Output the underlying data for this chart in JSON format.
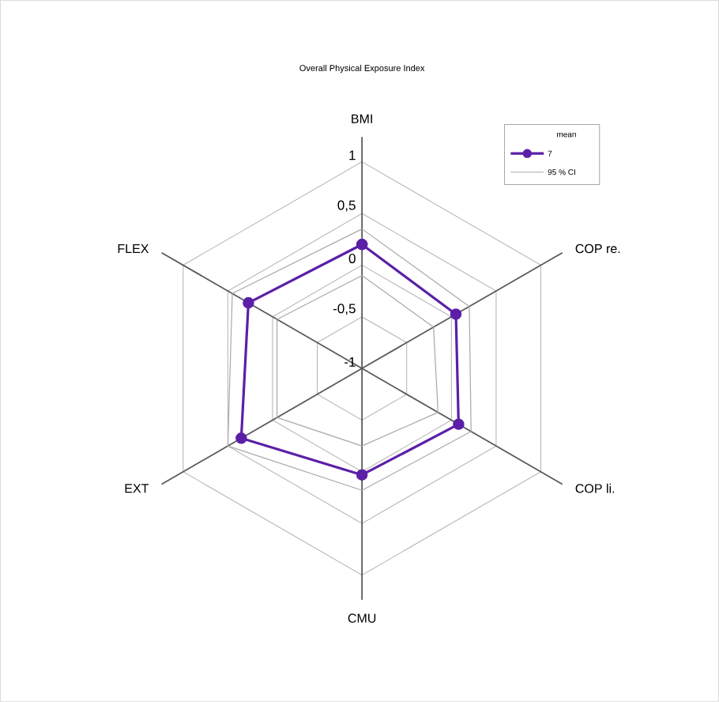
{
  "chart_data": {
    "type": "radar",
    "title": "Overall Physical Exposure Index",
    "legend_title": "mean",
    "categories": [
      "BMI",
      "COP re.",
      "COP li.",
      "CMU",
      "EXT",
      "FLEX"
    ],
    "series": [
      {
        "name": "7",
        "color": "#5b1fa8",
        "values": [
          0.2,
          0.05,
          0.08,
          0.03,
          0.35,
          0.27
        ],
        "marker": "circle"
      },
      {
        "name": "95 % CI",
        "color": "#a8a8a8",
        "values": [
          0.35,
          0.2,
          0.22,
          0.18,
          0.5,
          0.45
        ],
        "marker": "none"
      },
      {
        "color": "#a8a8a8",
        "values": [
          -0.1,
          -0.2,
          -0.15,
          -0.25,
          -0.05,
          -0.05
        ],
        "marker": "none"
      }
    ],
    "ylim": [
      -1,
      1
    ],
    "yticks": [
      1,
      {
        "value": 0.5,
        "label": "0,5"
      },
      0,
      {
        "value": -0.5,
        "label": "-0,5"
      },
      -1
    ],
    "grid": true,
    "legend": "top right"
  }
}
